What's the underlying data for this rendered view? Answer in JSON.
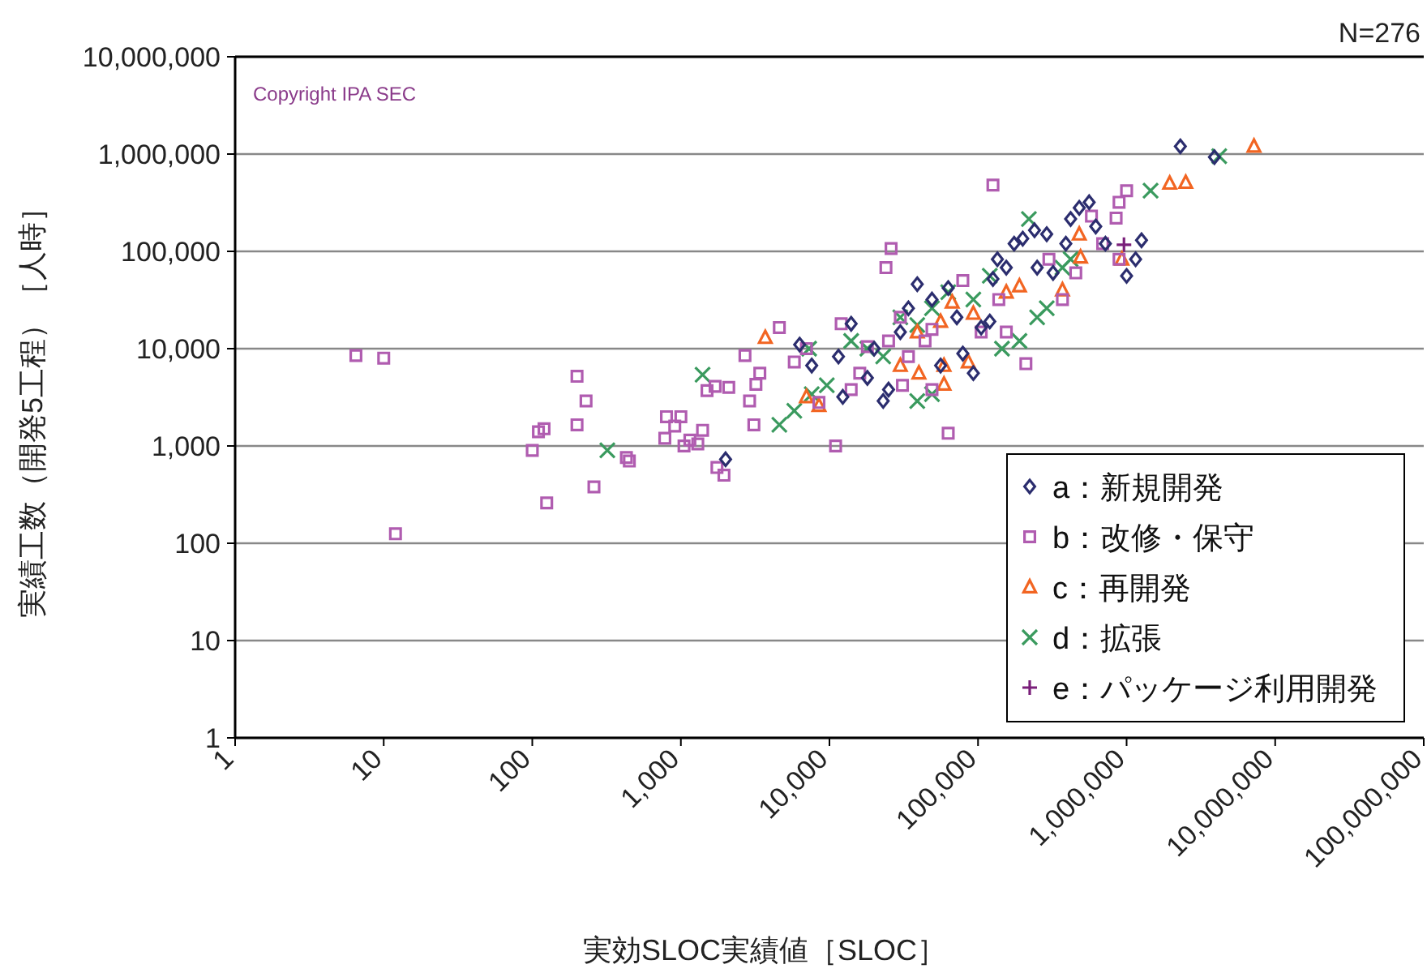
{
  "chart_data": {
    "type": "scatter",
    "xlabel": "実効SLOC実績値［SLOC］",
    "ylabel": "実績工数（開発5工程）［人時］",
    "log": "xy",
    "grid": "y",
    "legend": "bottom right",
    "annotations": [
      "N=276",
      "Copyright IPA SEC"
    ],
    "xlim": [
      1,
      100000000
    ],
    "ylim": [
      1,
      10000000
    ],
    "xticks": [
      1,
      10,
      100,
      {
        "value": 1000,
        "label": "1,000"
      },
      {
        "value": 10000,
        "label": "10,000"
      },
      {
        "value": 100000,
        "label": "100,000"
      },
      {
        "value": 1000000,
        "label": "1,000,000"
      },
      {
        "value": 10000000,
        "label": "10,000,000"
      },
      {
        "value": 100000000,
        "label": "100,000,000"
      }
    ],
    "yticks": [
      1,
      10,
      100,
      {
        "value": 1000,
        "label": "1,000"
      },
      {
        "value": 10000,
        "label": "10,000"
      },
      {
        "value": 100000,
        "label": "100,000"
      },
      {
        "value": 1000000,
        "label": "1,000,000"
      },
      {
        "value": 10000000,
        "label": "10,000,000"
      }
    ],
    "series": [
      {
        "name": "a：新規開発",
        "color": "#2b2d6e",
        "marker": "diamond",
        "x": [
          2000,
          6300,
          11500,
          14000,
          18000,
          20000,
          25000,
          30000,
          34000,
          39000,
          49000,
          63000,
          72000,
          79000,
          93000,
          105000,
          126000,
          135000,
          155000,
          175000,
          200000,
          240000,
          290000,
          320000,
          420000,
          480000,
          560000,
          620000,
          720000,
          1000000,
          1150000,
          1260000,
          2300000,
          3900000,
          7600,
          12300,
          23000,
          56000,
          120000,
          250000,
          390000
        ],
        "values": [
          730,
          11000,
          8300,
          18000,
          5000,
          10000,
          3800,
          14800,
          26000,
          46000,
          32000,
          42000,
          21000,
          8900,
          5600,
          16500,
          52000,
          83000,
          68000,
          120000,
          135000,
          165000,
          150000,
          60000,
          215000,
          280000,
          320000,
          180000,
          120000,
          56000,
          83000,
          130000,
          1200000,
          930000,
          6700,
          3200,
          2900,
          6700,
          19000,
          68000,
          120000
        ]
      },
      {
        "name": "b：改修・保守",
        "color": "#b05cb0",
        "marker": "square",
        "x": [
          6.5,
          10,
          12,
          100,
          110,
          120,
          125,
          200,
          200,
          230,
          260,
          430,
          450,
          780,
          800,
          910,
          1000,
          1050,
          1150,
          1300,
          1400,
          1500,
          1700,
          2100,
          1750,
          1950,
          2700,
          2900,
          3200,
          3100,
          3400,
          4600,
          5800,
          7000,
          8500,
          11000,
          12000,
          24000,
          26000,
          25000,
          30000,
          49000,
          63000,
          79000,
          126000,
          138000,
          210000,
          300000,
          455000,
          580000,
          690000,
          890000,
          1000000,
          850000,
          890000,
          370000,
          155000,
          105000,
          34000,
          18000,
          16000,
          14000,
          44000,
          31000,
          49000
        ],
        "values": [
          8500,
          8000,
          125,
          900,
          1400,
          1500,
          260,
          1650,
          5200,
          2900,
          380,
          760,
          700,
          1200,
          2000,
          1600,
          2000,
          1000,
          1150,
          1050,
          1450,
          3700,
          4100,
          4000,
          600,
          500,
          8500,
          2900,
          4300,
          1650,
          5600,
          16500,
          7300,
          10000,
          2800,
          1000,
          18000,
          68000,
          107000,
          12000,
          21000,
          3800,
          1350,
          50000,
          480000,
          32000,
          7000,
          83000,
          60000,
          230000,
          120000,
          320000,
          420000,
          220000,
          83000,
          32000,
          14800,
          14800,
          8300,
          10500,
          5600,
          3800,
          12000,
          4200,
          15800
        ]
      },
      {
        "name": "c：再開発",
        "color": "#f26522",
        "marker": "triangle",
        "x": [
          3700,
          7000,
          8500,
          30000,
          39000,
          56000,
          93000,
          155000,
          190000,
          370000,
          480000,
          930000,
          490000,
          1950000,
          2500000,
          7200000,
          86000,
          59000,
          59000,
          40000,
          67000
        ],
        "values": [
          13000,
          3200,
          2600,
          6700,
          14800,
          19000,
          23000,
          38000,
          44000,
          40000,
          150000,
          83000,
          87000,
          500000,
          510000,
          1200000,
          7300,
          6700,
          4300,
          5600,
          30000
        ]
      },
      {
        "name": "d：拡張",
        "color": "#3a9a5e",
        "marker": "x",
        "x": [
          320,
          1400,
          4600,
          5800,
          7600,
          7300,
          9600,
          14000,
          18000,
          23000,
          30000,
          39000,
          49000,
          63000,
          93000,
          120000,
          145000,
          190000,
          220000,
          250000,
          290000,
          370000,
          420000,
          1450000,
          4200000,
          49000,
          39000
        ],
        "values": [
          900,
          5400,
          1650,
          2300,
          3400,
          10000,
          4200,
          12000,
          10000,
          8300,
          21000,
          17500,
          26000,
          38000,
          32000,
          56000,
          10000,
          12000,
          215000,
          21000,
          26000,
          68000,
          83000,
          420000,
          950000,
          3400,
          2900
        ]
      },
      {
        "name": "e：パッケージ利用開発",
        "color": "#7a1f7a",
        "marker": "cross",
        "x": [
          960000
        ],
        "values": [
          117000
        ]
      }
    ]
  }
}
